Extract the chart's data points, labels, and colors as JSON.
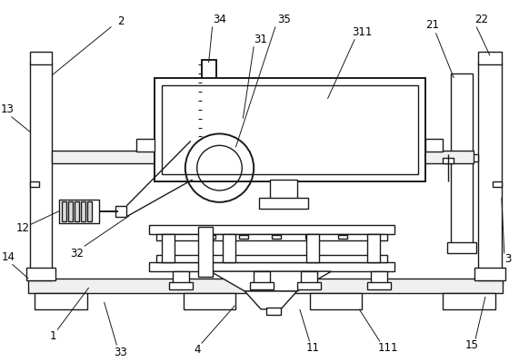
{
  "background_color": "#ffffff",
  "line_color": "#1a1a1a",
  "label_fontsize": 8.5
}
